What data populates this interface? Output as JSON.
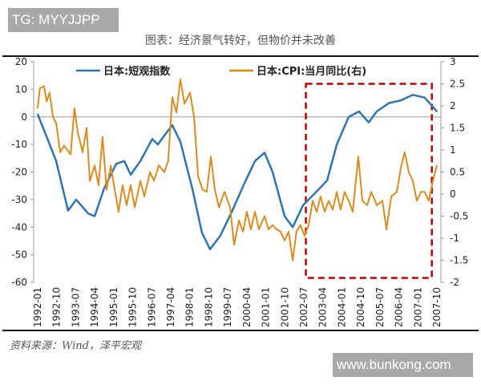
{
  "watermark_top": "TG: MYYJJPP",
  "watermark_bottom": "www.bunkong.com",
  "source": "资料来源：Wind，泽平宏观",
  "colors": {
    "tankan": "#2e75b6",
    "cpi": "#e08a1e",
    "highlight": "#c00000"
  },
  "chart_data": {
    "type": "line",
    "title": "图表：经济景气转好，但物价并未改善",
    "legend_position": "top-center",
    "grid": false,
    "x_tick_labels": [
      "1992-01",
      "1992-10",
      "1993-07",
      "1994-04",
      "1995-01",
      "1995-10",
      "1996-07",
      "1997-04",
      "1998-01",
      "1998-10",
      "1999-07",
      "2000-04",
      "2001-01",
      "2001-10",
      "2002-07",
      "2003-04",
      "2004-01",
      "2004-10",
      "2005-07",
      "2006-04",
      "2007-01",
      "2007-10"
    ],
    "xlim": [
      1992.0,
      2007.75
    ],
    "y_left": {
      "lim": [
        -60,
        20
      ],
      "ticks": [
        "20",
        "10",
        "0",
        "-10",
        "-20",
        "-30",
        "-40",
        "-50",
        "-60"
      ]
    },
    "y_right": {
      "lim": [
        -2,
        3
      ],
      "ticks": [
        "3",
        "2.5",
        "2",
        "1.5",
        "1",
        "0.5",
        "0",
        "-0.5",
        "-1",
        "-1.5",
        "-2"
      ]
    },
    "highlight_box": {
      "x": [
        2002.58,
        2007.55
      ],
      "y_right": [
        2.5,
        -1.9
      ]
    },
    "series": [
      {
        "name": "日本:短观指数",
        "axis": "left",
        "x": [
          1992.0,
          1992.73,
          1993.2,
          1993.52,
          1993.99,
          1994.25,
          1994.62,
          1995.1,
          1995.42,
          1995.67,
          1996.05,
          1996.52,
          1996.74,
          1997.06,
          1997.31,
          1997.63,
          1998.1,
          1998.48,
          1998.8,
          1999.21,
          1999.68,
          2000.16,
          2000.57,
          2000.95,
          2001.27,
          2001.74,
          2002.06,
          2002.47,
          2003.01,
          2003.42,
          2003.8,
          2004.27,
          2004.68,
          2005.06,
          2005.38,
          2005.85,
          2006.33,
          2006.8,
          2007.27,
          2007.75
        ],
        "y": [
          1,
          -16,
          -34,
          -30,
          -35,
          -36,
          -26,
          -17,
          -16,
          -21,
          -16,
          -8,
          -10,
          -6,
          -3,
          -9,
          -26,
          -42,
          -48,
          -43,
          -34,
          -24,
          -16,
          -13,
          -20,
          -36,
          -40,
          -32,
          -27,
          -23,
          -10,
          0,
          2,
          -2,
          2,
          5,
          6,
          8,
          7,
          2
        ]
      },
      {
        "name": "日本:CPI:当月同比(右)",
        "axis": "right",
        "x": [
          1992.0,
          1992.09,
          1992.25,
          1992.35,
          1992.47,
          1992.6,
          1992.73,
          1992.89,
          1993.04,
          1993.3,
          1993.45,
          1993.58,
          1993.77,
          1993.93,
          1994.06,
          1994.25,
          1994.4,
          1994.56,
          1994.72,
          1994.88,
          1995.04,
          1995.19,
          1995.35,
          1995.51,
          1995.67,
          1995.83,
          1996.05,
          1996.21,
          1996.43,
          1996.59,
          1996.78,
          1997.0,
          1997.15,
          1997.31,
          1997.47,
          1997.63,
          1997.79,
          1998.01,
          1998.17,
          1998.33,
          1998.51,
          1998.67,
          1998.83,
          1998.99,
          1999.15,
          1999.37,
          1999.59,
          1999.75,
          1999.94,
          2000.1,
          2000.25,
          2000.41,
          2000.57,
          2000.73,
          2000.95,
          2001.11,
          2001.27,
          2001.42,
          2001.58,
          2001.74,
          2001.9,
          2002.06,
          2002.21,
          2002.37,
          2002.53,
          2002.69,
          2002.85,
          2003.01,
          2003.16,
          2003.32,
          2003.48,
          2003.64,
          2003.8,
          2003.95,
          2004.11,
          2004.27,
          2004.43,
          2004.65,
          2004.81,
          2005.0,
          2005.16,
          2005.38,
          2005.6,
          2005.76,
          2005.95,
          2006.17,
          2006.33,
          2006.48,
          2006.64,
          2006.8,
          2006.96,
          2007.12,
          2007.27,
          2007.43,
          2007.59,
          2007.75
        ],
        "y": [
          1.95,
          2.4,
          2.45,
          2.1,
          2.3,
          1.75,
          1.6,
          0.95,
          1.1,
          0.9,
          1.95,
          1.4,
          0.95,
          1.5,
          0.3,
          0.65,
          0.2,
          1.3,
          0.1,
          0.65,
          0.1,
          -0.4,
          0.2,
          -0.25,
          0.2,
          -0.3,
          0.3,
          -0.05,
          0.5,
          0.3,
          0.65,
          0.5,
          0.75,
          2.2,
          1.85,
          2.6,
          2.05,
          2.3,
          1.75,
          0.4,
          0.1,
          0.05,
          0.85,
          0.1,
          -0.3,
          0.05,
          -0.3,
          -1.15,
          -0.6,
          -0.85,
          -0.4,
          -0.8,
          -0.4,
          -0.8,
          -0.5,
          -0.8,
          -0.7,
          -0.8,
          -0.85,
          -1.05,
          -0.85,
          -1.5,
          -0.85,
          -0.7,
          -0.95,
          -0.7,
          -0.15,
          -0.4,
          -0.05,
          -0.4,
          -0.15,
          -0.35,
          0.05,
          -0.35,
          0.05,
          -0.15,
          -0.4,
          0.85,
          -0.15,
          -0.25,
          0.05,
          -0.25,
          -0.15,
          -0.8,
          -0.05,
          0.05,
          0.6,
          0.95,
          0.5,
          0.3,
          -0.15,
          0.05,
          0.05,
          -0.15,
          0.3,
          0.65
        ]
      }
    ]
  }
}
